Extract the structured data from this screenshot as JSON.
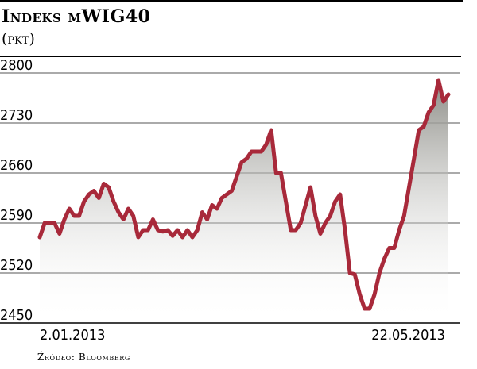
{
  "header": {
    "title": "Indeks mWIG40",
    "unit": "(pkt)"
  },
  "source": "Źródło: Bloomberg",
  "colors": {
    "line": "#a8293a",
    "grid": "#555555",
    "fill_top": "#8c8c86",
    "fill_bottom": "#ffffff"
  },
  "chart_data": {
    "type": "area",
    "title": "Indeks mWIG40",
    "ylabel": "(pkt)",
    "ylim": [
      2450,
      2800
    ],
    "yticks": [
      2450,
      2520,
      2590,
      2660,
      2730,
      2800
    ],
    "x_start_label": "2.01.2013",
    "x_end_label": "22.05.2013",
    "grid": true,
    "series": [
      {
        "values": [
          2570,
          2590,
          2590,
          2590,
          2575,
          2595,
          2610,
          2600,
          2600,
          2620,
          2630,
          2635,
          2625,
          2645,
          2640,
          2620,
          2605,
          2595,
          2610,
          2600,
          2570,
          2580,
          2580,
          2595,
          2580,
          2578,
          2580,
          2572,
          2580,
          2570,
          2580,
          2570,
          2580,
          2605,
          2595,
          2615,
          2610,
          2625,
          2630,
          2635,
          2655,
          2675,
          2680,
          2690,
          2690,
          2690,
          2700,
          2720,
          2660,
          2660,
          2620,
          2580,
          2580,
          2590,
          2615,
          2640,
          2600,
          2575,
          2590,
          2600,
          2620,
          2630,
          2580,
          2520,
          2518,
          2490,
          2470,
          2470,
          2490,
          2520,
          2540,
          2555,
          2555,
          2580,
          2600,
          2640,
          2680,
          2720,
          2725,
          2745,
          2755,
          2790,
          2760,
          2770
        ]
      }
    ]
  }
}
